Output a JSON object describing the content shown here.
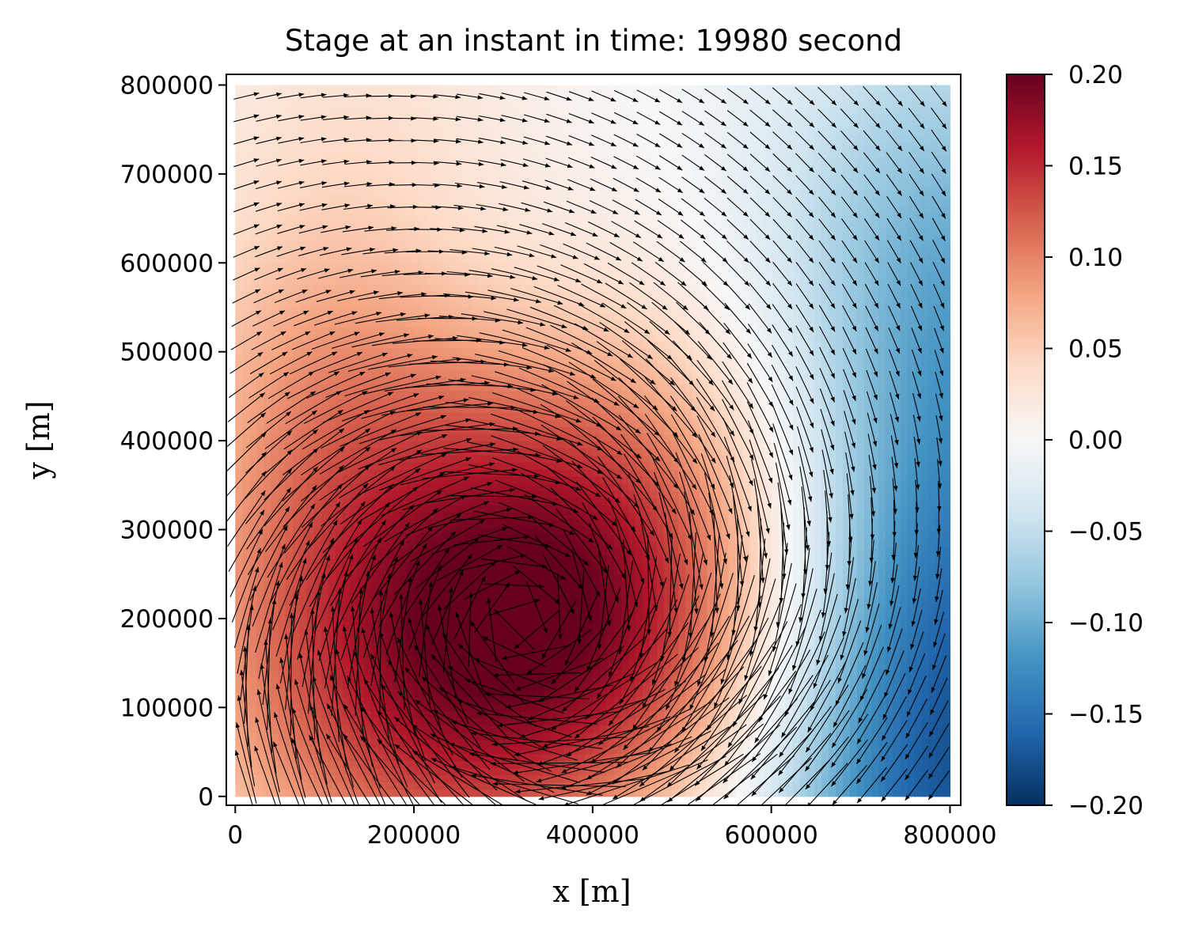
{
  "chart_data": {
    "type": "heatmap",
    "subtype": "quiver-over-heatmap",
    "title": "Stage at an instant in time: 19980 second",
    "xlabel": "x [m]",
    "ylabel": "y [m]",
    "xlim": [
      -10000,
      812000
    ],
    "ylim": [
      -10000,
      812000
    ],
    "data_extent": [
      0,
      800000
    ],
    "x_ticks": [
      0,
      200000,
      400000,
      600000,
      800000
    ],
    "x_tick_labels": [
      "0",
      "200000",
      "400000",
      "600000",
      "800000"
    ],
    "y_ticks": [
      0,
      100000,
      200000,
      300000,
      400000,
      500000,
      600000,
      700000,
      800000
    ],
    "y_tick_labels": [
      "0",
      "100000",
      "200000",
      "300000",
      "400000",
      "500000",
      "600000",
      "700000",
      "800000"
    ],
    "colormap": "RdBu_r",
    "colorbar": {
      "vmin": -0.2,
      "vmax": 0.2,
      "ticks": [
        0.2,
        0.15,
        0.1,
        0.05,
        0.0,
        -0.05,
        -0.1,
        -0.15,
        -0.2
      ],
      "tick_labels": [
        "0.20",
        "0.15",
        "0.10",
        "0.05",
        "0.00",
        "−0.05",
        "−0.10",
        "−0.15",
        "−0.20"
      ],
      "stops": [
        "#053061",
        "#2166ac",
        "#4393c3",
        "#92c5de",
        "#d1e5f0",
        "#f7f7f7",
        "#fddbc7",
        "#f4a582",
        "#d6604d",
        "#b2182b",
        "#67001f"
      ]
    },
    "field": {
      "description": "stage anomaly: positive dome with core near (320000, 200000), negative trough along the east edge",
      "max": 0.2,
      "min": -0.15,
      "peak_center": [
        320000,
        200000
      ],
      "trough_center": [
        800000,
        100000
      ]
    },
    "vectors": {
      "flow": "clockwise gyre around the dome center",
      "arrow_color": "#000000",
      "grid_spacing": 25000
    },
    "grid": false
  }
}
